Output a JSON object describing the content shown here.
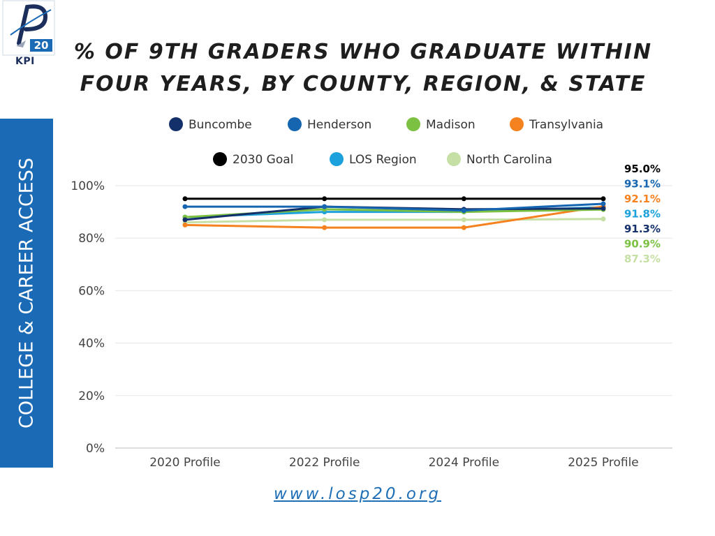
{
  "logo": {
    "badge_text": "20",
    "subtitle": "KPI"
  },
  "title": "% OF 9TH GRADERS WHO GRADUATE WITHIN FOUR YEARS, BY COUNTY, REGION, & STATE",
  "side_label": "COLLEGE & CAREER ACCESS",
  "footer_link": "www.losp20.org",
  "chart_data": {
    "type": "line",
    "categories": [
      "2020 Profile",
      "2022 Profile",
      "2024 Profile",
      "2025 Profile"
    ],
    "ylim": [
      0,
      100
    ],
    "y_ticks": [
      "0%",
      "20%",
      "40%",
      "60%",
      "80%",
      "100%"
    ],
    "grid": true,
    "legend_position": "top",
    "series": [
      {
        "name": "Buncombe",
        "color": "#13306b",
        "values": [
          87,
          92,
          91,
          91.3
        ]
      },
      {
        "name": "Henderson",
        "color": "#1565b0",
        "values": [
          92,
          92,
          90.5,
          93.1
        ]
      },
      {
        "name": "Madison",
        "color": "#7cc142",
        "values": [
          88,
          91,
          90,
          90.9
        ]
      },
      {
        "name": "Transylvania",
        "color": "#f5821f",
        "values": [
          85,
          84,
          84,
          92.1
        ]
      },
      {
        "name": "2030 Goal",
        "color": "#000000",
        "values": [
          95,
          95,
          95,
          95.0
        ]
      },
      {
        "name": "LOS Region",
        "color": "#1da1dc",
        "values": [
          88,
          90,
          90,
          91.8
        ]
      },
      {
        "name": "North Carolina",
        "color": "#c5dfa4",
        "values": [
          86,
          87,
          87,
          87.3
        ]
      }
    ],
    "end_labels": [
      {
        "text": "95.0%",
        "color": "#000000"
      },
      {
        "text": "93.1%",
        "color": "#1565b0"
      },
      {
        "text": "92.1%",
        "color": "#f5821f"
      },
      {
        "text": "91.8%",
        "color": "#1da1dc"
      },
      {
        "text": "91.3%",
        "color": "#13306b"
      },
      {
        "text": "90.9%",
        "color": "#7cc142"
      },
      {
        "text": "87.3%",
        "color": "#c5dfa4"
      }
    ]
  }
}
